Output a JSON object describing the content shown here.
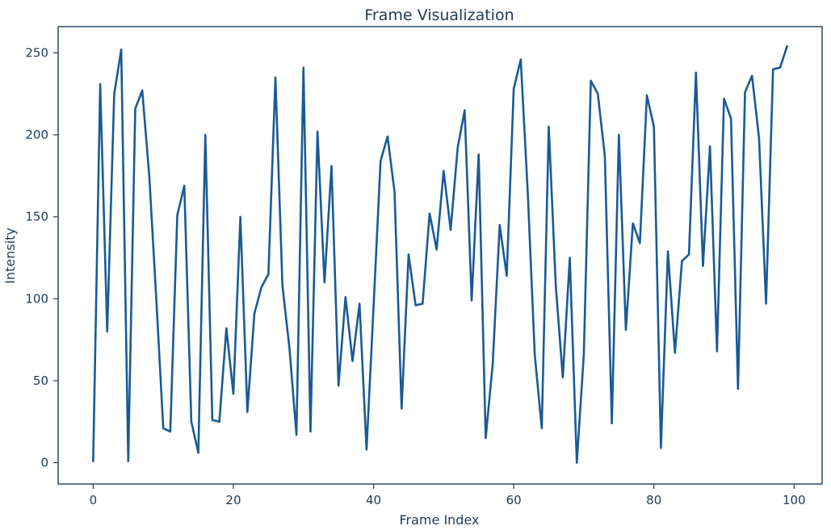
{
  "chart_data": {
    "type": "line",
    "title": "Frame Visualization",
    "xlabel": "Frame Index",
    "ylabel": "Intensity",
    "xlim": [
      -5,
      104
    ],
    "ylim": [
      -13,
      266
    ],
    "xticks": [
      0,
      20,
      40,
      60,
      80,
      100
    ],
    "yticks": [
      0,
      50,
      100,
      150,
      200,
      250
    ],
    "grid": false,
    "legend": "none",
    "colors": {
      "line": "#1a5a96",
      "text": "#1f3b57",
      "frame": "#1f3b57"
    },
    "series": [
      {
        "x": [
          0,
          1,
          2,
          3,
          4,
          5,
          6,
          7,
          8,
          9,
          10,
          11,
          12,
          13,
          14,
          15,
          16,
          17,
          18,
          19,
          20,
          21,
          22,
          23,
          24,
          25,
          26,
          27,
          28,
          29,
          30,
          31,
          32,
          33,
          34,
          35,
          36,
          37,
          38,
          39,
          40,
          41,
          42,
          43,
          44,
          45,
          46,
          47,
          48,
          49,
          50,
          51,
          52,
          53,
          54,
          55,
          56,
          57,
          58,
          59,
          60,
          61,
          62,
          63,
          64,
          65,
          66,
          67,
          68,
          69,
          70,
          71,
          72,
          73,
          74,
          75,
          76,
          77,
          78,
          79,
          80,
          81,
          82,
          83,
          84,
          85,
          86,
          87,
          88,
          89,
          90,
          91,
          92,
          93,
          94,
          95,
          96,
          97,
          98,
          99
        ],
        "values": [
          1,
          231,
          80,
          225,
          252,
          1,
          216,
          227,
          175,
          100,
          21,
          19,
          151,
          169,
          25,
          6,
          200,
          26,
          25,
          82,
          42,
          150,
          31,
          91,
          107,
          115,
          235,
          108,
          70,
          17,
          241,
          19,
          202,
          110,
          181,
          47,
          101,
          62,
          97,
          8,
          95,
          184,
          199,
          165,
          33,
          127,
          96,
          97,
          152,
          130,
          178,
          142,
          192,
          215,
          99,
          188,
          15,
          60,
          145,
          114,
          228,
          246,
          165,
          66,
          21,
          205,
          108,
          52,
          125,
          0,
          66,
          233,
          225,
          187,
          24,
          200,
          81,
          146,
          134,
          224,
          205,
          9,
          129,
          67,
          123,
          127,
          238,
          120,
          193,
          68,
          222,
          210,
          45,
          226,
          236,
          198,
          97,
          240,
          241,
          254
        ]
      }
    ]
  }
}
